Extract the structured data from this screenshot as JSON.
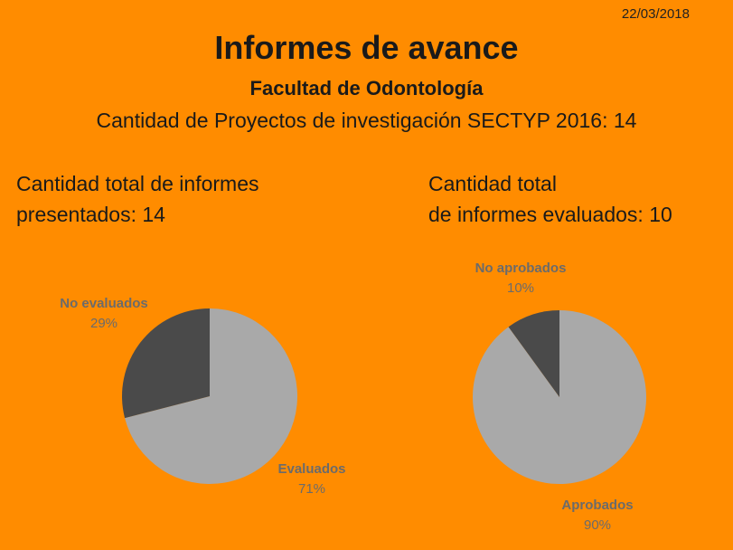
{
  "date": "22/03/2018",
  "title": "Informes de avance",
  "subtitle": "Facultad de Odontología",
  "projects_line": "Cantidad de Proyectos de investigación SECTYP 2016: 14",
  "left_panel": {
    "title_line1": "Cantidad total de informes",
    "title_line2": "presentados: 14"
  },
  "right_panel": {
    "title_line1": "Cantidad total",
    "title_line2": "de informes evaluados: 10"
  },
  "colors": {
    "background": "#ff8c00",
    "light_slice": "#a9a9a9",
    "dark_slice": "#4a4a4a",
    "label": "#6b6b6b"
  },
  "chart_data": [
    {
      "type": "pie",
      "slices": [
        {
          "label": "Evaluados",
          "value": 71,
          "display": "71%",
          "color": "#a9a9a9"
        },
        {
          "label": "No evaluados",
          "value": 29,
          "display": "29%",
          "color": "#4a4a4a"
        }
      ]
    },
    {
      "type": "pie",
      "slices": [
        {
          "label": "Aprobados",
          "value": 90,
          "display": "90%",
          "color": "#a9a9a9"
        },
        {
          "label": "No aprobados",
          "value": 10,
          "display": "10%",
          "color": "#4a4a4a"
        }
      ]
    }
  ]
}
